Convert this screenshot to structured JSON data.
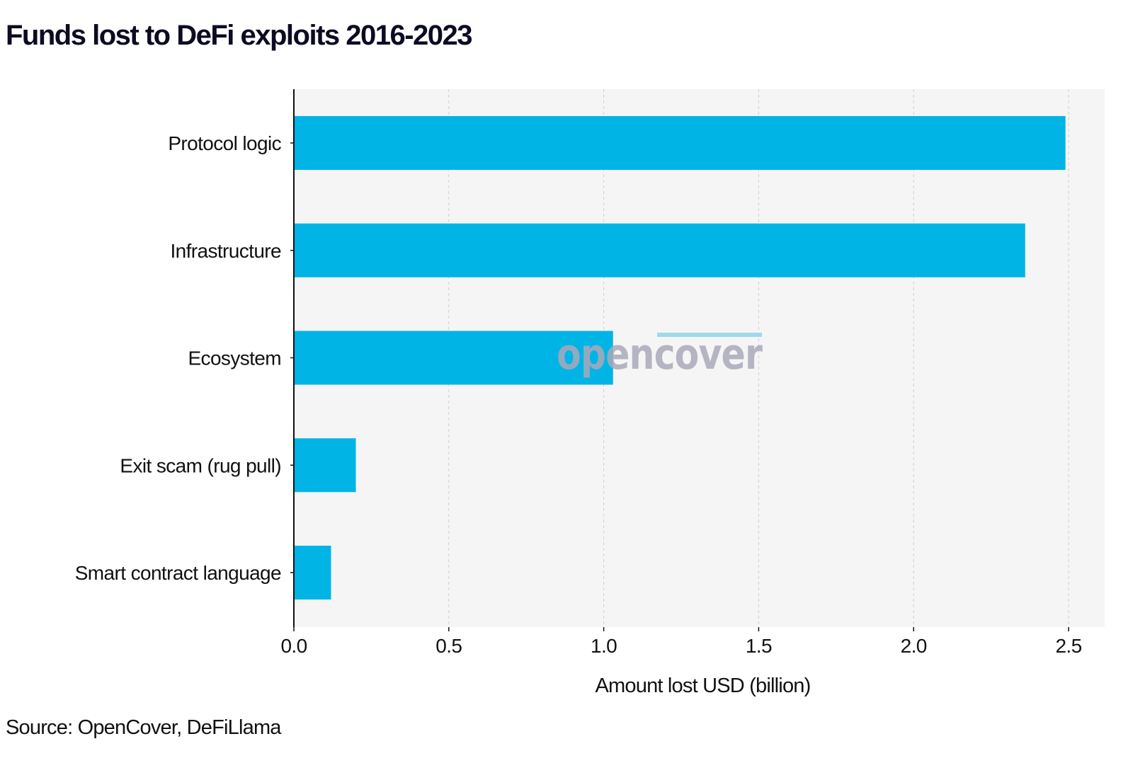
{
  "title": "Funds lost to DeFi exploits 2016-2023",
  "source": "Source: OpenCover, DeFiLlama",
  "watermark": "opencover",
  "colors": {
    "bar": "#00b4e6",
    "plot_background": "#f5f5f5",
    "grid": "#cfcfcf",
    "axis": "#111111",
    "watermark_text": "#a9a8b8",
    "watermark_accent": "#9fd9ea"
  },
  "chart_data": {
    "type": "bar",
    "orientation": "horizontal",
    "categories": [
      "Protocol logic",
      "Infrastructure",
      "Ecosystem",
      "Exit scam (rug pull)",
      "Smart contract language"
    ],
    "values": [
      2.49,
      2.36,
      1.03,
      0.2,
      0.12
    ],
    "xlabel": "Amount lost USD (billion)",
    "ylabel": "",
    "xlim": [
      0,
      2.6
    ],
    "xticks": [
      0.0,
      0.5,
      1.0,
      1.5,
      2.0,
      2.5
    ],
    "xtick_labels": [
      "0.0",
      "0.5",
      "1.0",
      "1.5",
      "2.0",
      "2.5"
    ],
    "grid": "vertical dashed"
  }
}
